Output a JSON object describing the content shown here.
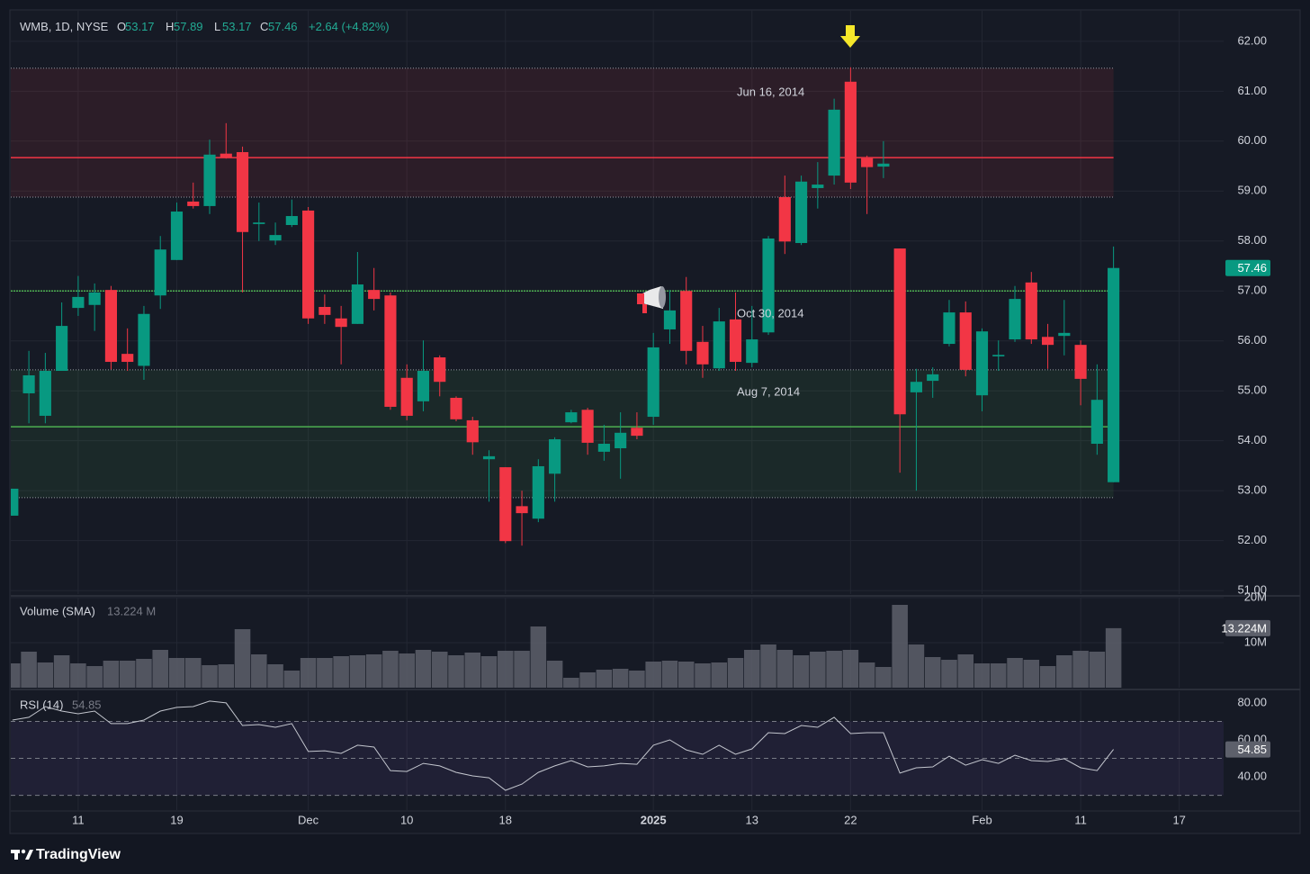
{
  "header": {
    "symbol": "WMB, 1D, NYSE",
    "ohlc_letters": [
      "O",
      "H",
      "L",
      "C"
    ],
    "change": "+2.64 (+4.82%)"
  },
  "footer": {
    "brand": "TradingView"
  },
  "chart_data": [
    {
      "type": "candlestick",
      "up_color": "#089981",
      "down_color": "#f23645",
      "grid": true,
      "xlim": [
        -0.1,
        73.7
      ],
      "xticks": [
        {
          "value": 4,
          "label": "11"
        },
        {
          "value": 10,
          "label": "19"
        },
        {
          "value": 18,
          "label": "Dec"
        },
        {
          "value": 24,
          "label": "10"
        },
        {
          "value": 30,
          "label": "18"
        },
        {
          "value": 39,
          "label": "2025"
        },
        {
          "value": 45,
          "label": "13"
        },
        {
          "value": 51,
          "label": "22"
        },
        {
          "value": 59,
          "label": "Feb"
        },
        {
          "value": 65,
          "label": "11"
        },
        {
          "value": 71,
          "label": "17"
        }
      ],
      "ylim": [
        50.93,
        62.61
      ],
      "yticks": [
        {
          "value": 51,
          "label": "51.00"
        },
        {
          "value": 52,
          "label": "52.00"
        },
        {
          "value": 53,
          "label": "53.00"
        },
        {
          "value": 54,
          "label": "54.00"
        },
        {
          "value": 55,
          "label": "55.00"
        },
        {
          "value": 56,
          "label": "56.00"
        },
        {
          "value": 57,
          "label": "57.00"
        },
        {
          "value": 58,
          "label": "58.00"
        },
        {
          "value": 59,
          "label": "59.00"
        },
        {
          "value": 60,
          "label": "60.00"
        },
        {
          "value": 61,
          "label": "61.00"
        },
        {
          "value": 62,
          "label": "62.00"
        }
      ],
      "open": [
        52.5,
        54.95,
        54.5,
        55.4,
        56.66,
        56.72,
        57.02,
        55.74,
        55.5,
        56.91,
        57.62,
        58.79,
        58.7,
        59.75,
        59.78,
        58.34,
        58.01,
        58.32,
        58.61,
        56.68,
        56.45,
        56.34,
        57.02,
        56.91,
        55.26,
        54.79,
        55.67,
        54.86,
        54.41,
        53.63,
        53.47,
        52.69,
        52.44,
        53.34,
        54.37,
        54.62,
        53.78,
        53.85,
        54.26,
        54.48,
        56.23,
        57.0,
        55.98,
        55.45,
        56.43,
        55.56,
        56.17,
        58.88,
        57.96,
        59.06,
        59.31,
        61.19,
        59.66,
        59.49,
        57.85,
        54.97,
        55.2,
        55.94,
        56.57,
        54.91,
        55.69,
        56.03,
        57.17,
        56.08,
        56.1,
        55.92,
        53.94,
        53.17
      ],
      "high": [
        53.04,
        55.8,
        55.76,
        56.77,
        57.3,
        57.15,
        57.1,
        56.25,
        56.7,
        58.1,
        58.77,
        59.17,
        60.03,
        60.36,
        59.89,
        58.77,
        58.37,
        58.83,
        58.68,
        56.93,
        56.7,
        57.78,
        57.46,
        56.97,
        55.53,
        56.01,
        55.71,
        54.89,
        54.48,
        53.81,
        53.47,
        53.0,
        53.63,
        54.07,
        54.62,
        54.66,
        54.32,
        54.57,
        54.57,
        56.16,
        57.02,
        57.28,
        56.3,
        56.66,
        56.97,
        56.7,
        58.1,
        59.31,
        59.31,
        59.58,
        60.85,
        61.48,
        59.71,
        60.0,
        57.85,
        55.44,
        55.47,
        56.82,
        56.79,
        56.25,
        56.01,
        57.1,
        57.38,
        56.34,
        56.82,
        56.01,
        55.53,
        57.89
      ],
      "low": [
        52.5,
        54.35,
        54.35,
        55.4,
        56.5,
        56.2,
        55.43,
        55.4,
        55.22,
        56.64,
        57.62,
        58.65,
        58.54,
        59.65,
        56.97,
        58.0,
        57.92,
        58.28,
        56.34,
        56.34,
        55.53,
        56.34,
        56.61,
        54.62,
        54.41,
        54.59,
        54.89,
        54.39,
        53.72,
        52.78,
        51.95,
        51.9,
        52.37,
        52.78,
        54.35,
        53.72,
        53.6,
        53.24,
        54.03,
        54.32,
        55.94,
        55.53,
        55.26,
        55.4,
        55.4,
        55.47,
        56.12,
        57.74,
        57.92,
        58.65,
        59.13,
        59.04,
        58.54,
        59.26,
        53.36,
        53.0,
        54.86,
        55.89,
        55.29,
        54.59,
        55.4,
        55.98,
        55.94,
        55.44,
        55.71,
        54.71,
        53.72,
        53.17
      ],
      "close": [
        53.04,
        55.31,
        55.4,
        56.3,
        56.88,
        56.97,
        55.58,
        55.58,
        56.54,
        57.83,
        58.59,
        58.7,
        59.73,
        59.67,
        58.18,
        58.37,
        58.12,
        58.5,
        56.45,
        56.52,
        56.28,
        57.13,
        56.84,
        54.68,
        54.5,
        55.4,
        55.18,
        54.43,
        53.97,
        53.69,
        51.99,
        52.55,
        53.49,
        54.03,
        54.57,
        53.96,
        53.94,
        54.16,
        54.1,
        55.87,
        56.61,
        55.8,
        55.53,
        56.39,
        55.58,
        56.03,
        58.05,
        57.99,
        59.19,
        59.13,
        60.63,
        59.17,
        59.48,
        59.55,
        54.53,
        55.18,
        55.33,
        56.57,
        55.42,
        56.19,
        55.72,
        56.84,
        56.03,
        55.92,
        56.16,
        55.24,
        54.82,
        57.46
      ],
      "zones": [
        {
          "top": 61.46,
          "bottom": 58.88,
          "line": 59.67,
          "color": "#f23645"
        },
        {
          "top": 55.42,
          "bottom": 52.86,
          "line": 54.28,
          "color": "#4caf50"
        }
      ],
      "hline": {
        "value": 57.0,
        "color": "#4caf50"
      },
      "annotations": [
        "Jun 16, 2014",
        "Oct 30, 2014",
        "Aug 7, 2014"
      ]
    },
    {
      "type": "bar",
      "title": "Volume (SMA)",
      "legend_value": "13.224 M",
      "color": "#5d606b",
      "grid": true,
      "ylim": [
        0,
        20
      ],
      "yticks": [
        {
          "value": 20,
          "label": "20M"
        },
        {
          "value": 10,
          "label": "10M"
        }
      ],
      "values": [
        5.4,
        8.0,
        5.6,
        7.2,
        5.4,
        4.8,
        6.0,
        6.0,
        6.4,
        8.4,
        6.6,
        6.6,
        5.0,
        5.2,
        13.0,
        7.4,
        5.2,
        3.8,
        6.6,
        6.6,
        7.0,
        7.2,
        7.4,
        8.2,
        7.6,
        8.4,
        8.0,
        7.2,
        7.8,
        7.0,
        8.2,
        8.2,
        13.6,
        6.0,
        2.2,
        3.4,
        4.0,
        4.2,
        3.8,
        5.8,
        6.0,
        5.8,
        5.4,
        5.6,
        6.6,
        8.4,
        9.6,
        8.4,
        7.2,
        8.0,
        8.2,
        8.4,
        5.6,
        4.6,
        18.4,
        9.6,
        6.8,
        6.2,
        7.4,
        5.4,
        5.4,
        6.6,
        6.2,
        4.8,
        7.2,
        8.2,
        8.0,
        13.224
      ],
      "value_labels": [
        null,
        null,
        null,
        null,
        null,
        null,
        null,
        null,
        null,
        null,
        null,
        null,
        null,
        null,
        null,
        null,
        null,
        null,
        null,
        null,
        null,
        null,
        null,
        null,
        null,
        null,
        null,
        null,
        null,
        null,
        null,
        null,
        null,
        null,
        null,
        null,
        null,
        null,
        null,
        null,
        null,
        null,
        null,
        null,
        null,
        null,
        null,
        null,
        null,
        null,
        null,
        null,
        null,
        null,
        null,
        null,
        null,
        null,
        null,
        null,
        null,
        null,
        null,
        null,
        null,
        null,
        null,
        "13.224M"
      ]
    },
    {
      "type": "line",
      "title": "RSI (14)",
      "color": "#c3c6ce",
      "grid": false,
      "ylim": [
        22.0,
        86.3
      ],
      "yticks": [
        {
          "value": 80,
          "label": "80.00"
        },
        {
          "value": 60,
          "label": "60.00"
        },
        {
          "value": 40,
          "label": "40.00"
        }
      ],
      "band": [
        30,
        70
      ],
      "midline": 50,
      "values": [
        70.7,
        72.2,
        78.0,
        75.6,
        74.1,
        75.6,
        68.8,
        68.8,
        70.7,
        75.6,
        77.6,
        78.0,
        81.0,
        80.0,
        67.8,
        68.3,
        66.8,
        68.8,
        53.7,
        54.1,
        52.7,
        57.1,
        56.1,
        43.4,
        42.9,
        47.3,
        45.9,
        42.4,
        40.5,
        39.5,
        32.7,
        36.1,
        42.4,
        45.9,
        48.8,
        45.4,
        45.9,
        47.3,
        46.8,
        57.1,
        60.0,
        54.6,
        52.2,
        57.1,
        52.2,
        55.1,
        63.9,
        63.4,
        67.8,
        66.8,
        72.2,
        63.4,
        63.9,
        63.9,
        42.0,
        44.9,
        45.4,
        51.2,
        46.3,
        49.3,
        47.3,
        51.7,
        48.8,
        48.3,
        49.8,
        44.9,
        43.4,
        54.85
      ]
    }
  ]
}
